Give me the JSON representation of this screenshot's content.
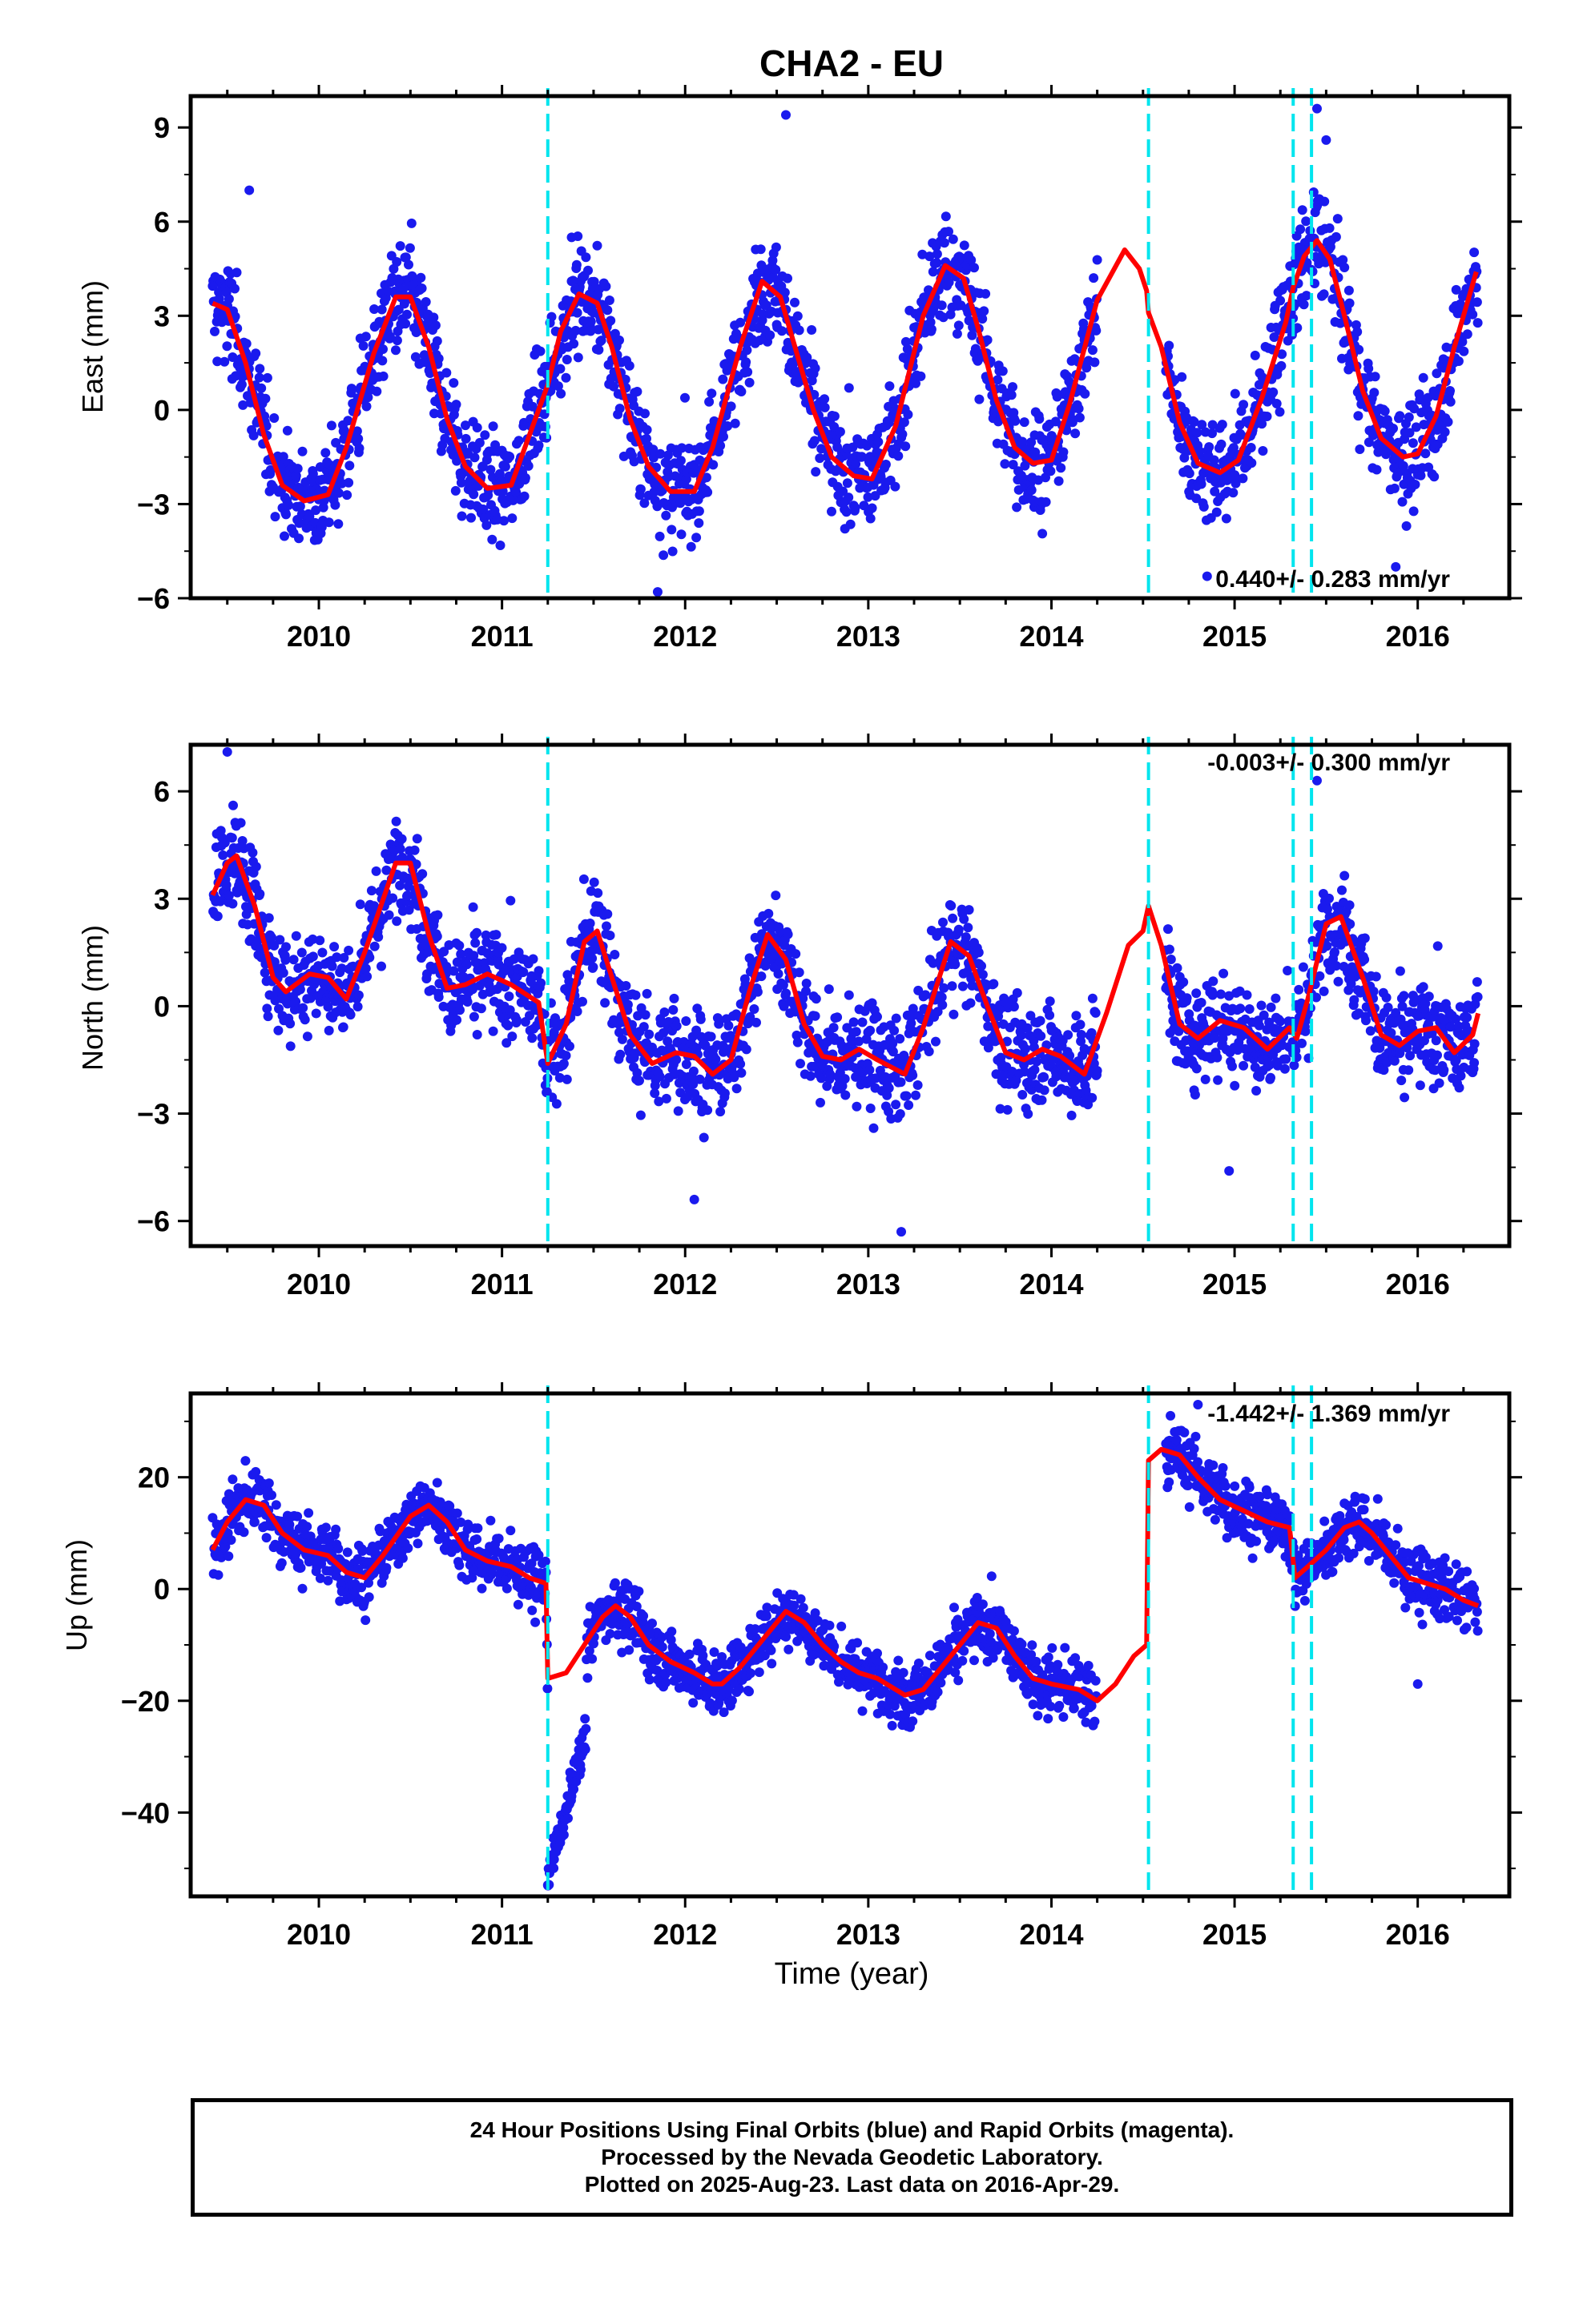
{
  "title": "CHA2 - EU",
  "xlabel": "Time (year)",
  "caption": [
    "24 Hour Positions Using Final Orbits (blue) and Rapid Orbits (magenta).",
    "Processed by the Nevada Geodetic Laboratory.",
    "Plotted on 2025-Aug-23. Last data on 2016-Apr-29."
  ],
  "colors": {
    "points": "#1a1aee",
    "model": "#ff0000",
    "events": "#00e5ee",
    "frame": "#000000"
  },
  "chart_data": [
    {
      "type": "scatter",
      "panel": "east",
      "ylabel": "East (mm)",
      "xlim": [
        2009.3,
        2016.5
      ],
      "ylim": [
        -6,
        10
      ],
      "yticks": [
        -6,
        -3,
        0,
        3,
        6,
        9
      ],
      "xticks": [
        2010,
        2011,
        2012,
        2013,
        2014,
        2015,
        2016
      ],
      "rate_label": "0.440+/- 0.283 mm/yr",
      "events": [
        2011.25,
        2014.53,
        2015.32,
        2015.42
      ],
      "model": [
        [
          2009.42,
          3.4
        ],
        [
          2009.5,
          3.2
        ],
        [
          2009.6,
          1.5
        ],
        [
          2009.7,
          -0.8
        ],
        [
          2009.8,
          -2.4
        ],
        [
          2009.92,
          -2.9
        ],
        [
          2010.05,
          -2.7
        ],
        [
          2010.15,
          -1.2
        ],
        [
          2010.3,
          1.8
        ],
        [
          2010.42,
          3.6
        ],
        [
          2010.5,
          3.6
        ],
        [
          2010.6,
          2.0
        ],
        [
          2010.7,
          -0.3
        ],
        [
          2010.8,
          -1.8
        ],
        [
          2010.92,
          -2.5
        ],
        [
          2011.05,
          -2.4
        ],
        [
          2011.15,
          -0.8
        ],
        [
          2011.25,
          0.8
        ],
        [
          2011.32,
          2.5
        ],
        [
          2011.42,
          3.7
        ],
        [
          2011.52,
          3.4
        ],
        [
          2011.6,
          2.0
        ],
        [
          2011.7,
          -0.3
        ],
        [
          2011.8,
          -1.8
        ],
        [
          2011.92,
          -2.6
        ],
        [
          2012.05,
          -2.6
        ],
        [
          2012.15,
          -1.2
        ],
        [
          2012.3,
          2.0
        ],
        [
          2012.42,
          4.1
        ],
        [
          2012.52,
          3.6
        ],
        [
          2012.6,
          2.0
        ],
        [
          2012.7,
          0.0
        ],
        [
          2012.8,
          -1.5
        ],
        [
          2012.92,
          -2.1
        ],
        [
          2013.02,
          -2.2
        ],
        [
          2013.15,
          -0.5
        ],
        [
          2013.3,
          3.0
        ],
        [
          2013.42,
          4.6
        ],
        [
          2013.52,
          4.2
        ],
        [
          2013.6,
          2.6
        ],
        [
          2013.7,
          0.3
        ],
        [
          2013.8,
          -1.2
        ],
        [
          2013.9,
          -1.7
        ],
        [
          2014.0,
          -1.6
        ],
        [
          2014.1,
          0.2
        ],
        [
          2014.25,
          3.5
        ],
        [
          2014.4,
          5.1
        ],
        [
          2014.48,
          4.5
        ],
        [
          2014.52,
          3.8
        ],
        [
          2014.53,
          3.1
        ],
        [
          2014.6,
          2.0
        ],
        [
          2014.7,
          -0.4
        ],
        [
          2014.8,
          -1.7
        ],
        [
          2014.92,
          -2.0
        ],
        [
          2015.02,
          -1.6
        ],
        [
          2015.15,
          0.4
        ],
        [
          2015.28,
          2.8
        ],
        [
          2015.32,
          3.9
        ],
        [
          2015.38,
          4.9
        ],
        [
          2015.45,
          5.4
        ],
        [
          2015.52,
          4.8
        ],
        [
          2015.6,
          3.0
        ],
        [
          2015.7,
          0.6
        ],
        [
          2015.8,
          -0.9
        ],
        [
          2015.92,
          -1.5
        ],
        [
          2016.0,
          -1.4
        ],
        [
          2016.1,
          -0.2
        ],
        [
          2016.2,
          2.0
        ],
        [
          2016.32,
          4.4
        ]
      ],
      "outliers": [
        [
          2009.62,
          7.0
        ],
        [
          2011.85,
          -5.8
        ],
        [
          2012.55,
          9.4
        ],
        [
          2015.45,
          9.6
        ],
        [
          2015.5,
          8.6
        ],
        [
          2014.85,
          -5.3
        ],
        [
          2011.38,
          5.5
        ],
        [
          2015.88,
          -5.0
        ]
      ]
    },
    {
      "type": "scatter",
      "panel": "north",
      "ylabel": "North (mm)",
      "xlim": [
        2009.3,
        2016.5
      ],
      "ylim": [
        -6.7,
        7.3
      ],
      "yticks": [
        -6,
        -3,
        0,
        3,
        6
      ],
      "xticks": [
        2010,
        2011,
        2012,
        2013,
        2014,
        2015,
        2016
      ],
      "rate_label": "-0.003+/- 0.300 mm/yr",
      "events": [
        2011.25,
        2014.53,
        2015.32,
        2015.42
      ],
      "model": [
        [
          2009.42,
          3.1
        ],
        [
          2009.5,
          4.0
        ],
        [
          2009.55,
          4.2
        ],
        [
          2009.65,
          2.8
        ],
        [
          2009.75,
          0.8
        ],
        [
          2009.82,
          0.4
        ],
        [
          2009.95,
          0.9
        ],
        [
          2010.05,
          0.8
        ],
        [
          2010.15,
          0.2
        ],
        [
          2010.25,
          1.5
        ],
        [
          2010.42,
          4.0
        ],
        [
          2010.5,
          4.0
        ],
        [
          2010.6,
          2.0
        ],
        [
          2010.7,
          0.5
        ],
        [
          2010.8,
          0.6
        ],
        [
          2010.92,
          0.9
        ],
        [
          2011.05,
          0.6
        ],
        [
          2011.2,
          0.1
        ],
        [
          2011.25,
          -1.6
        ],
        [
          2011.35,
          -0.5
        ],
        [
          2011.45,
          1.8
        ],
        [
          2011.52,
          2.1
        ],
        [
          2011.6,
          0.8
        ],
        [
          2011.7,
          -0.8
        ],
        [
          2011.82,
          -1.6
        ],
        [
          2011.95,
          -1.3
        ],
        [
          2012.05,
          -1.4
        ],
        [
          2012.15,
          -1.9
        ],
        [
          2012.25,
          -1.5
        ],
        [
          2012.35,
          0.4
        ],
        [
          2012.45,
          2.0
        ],
        [
          2012.55,
          1.3
        ],
        [
          2012.65,
          -0.5
        ],
        [
          2012.75,
          -1.4
        ],
        [
          2012.85,
          -1.5
        ],
        [
          2012.95,
          -1.2
        ],
        [
          2013.05,
          -1.5
        ],
        [
          2013.2,
          -1.9
        ],
        [
          2013.3,
          -0.6
        ],
        [
          2013.45,
          1.8
        ],
        [
          2013.55,
          1.4
        ],
        [
          2013.65,
          0.0
        ],
        [
          2013.75,
          -1.3
        ],
        [
          2013.85,
          -1.5
        ],
        [
          2013.95,
          -1.2
        ],
        [
          2014.05,
          -1.4
        ],
        [
          2014.18,
          -1.9
        ],
        [
          2014.3,
          -0.2
        ],
        [
          2014.42,
          1.7
        ],
        [
          2014.5,
          2.1
        ],
        [
          2014.53,
          2.8
        ],
        [
          2014.6,
          1.7
        ],
        [
          2014.7,
          -0.5
        ],
        [
          2014.8,
          -0.9
        ],
        [
          2014.92,
          -0.4
        ],
        [
          2015.05,
          -0.6
        ],
        [
          2015.18,
          -1.2
        ],
        [
          2015.3,
          -0.6
        ],
        [
          2015.34,
          -0.9
        ],
        [
          2015.4,
          0.2
        ],
        [
          2015.5,
          2.3
        ],
        [
          2015.58,
          2.5
        ],
        [
          2015.7,
          0.8
        ],
        [
          2015.8,
          -0.8
        ],
        [
          2015.9,
          -1.1
        ],
        [
          2016.0,
          -0.7
        ],
        [
          2016.1,
          -0.6
        ],
        [
          2016.2,
          -1.3
        ],
        [
          2016.3,
          -0.8
        ],
        [
          2016.33,
          -0.2
        ]
      ],
      "outliers": [
        [
          2009.5,
          7.1
        ],
        [
          2013.18,
          -6.3
        ],
        [
          2015.45,
          6.3
        ],
        [
          2012.05,
          -5.4
        ],
        [
          2014.97,
          -4.6
        ]
      ]
    },
    {
      "type": "scatter",
      "panel": "up",
      "ylabel": "Up (mm)",
      "xlim": [
        2009.3,
        2016.5
      ],
      "ylim": [
        -55,
        35
      ],
      "yticks": [
        -40,
        -20,
        0,
        20
      ],
      "xticks": [
        2010,
        2011,
        2012,
        2013,
        2014,
        2015,
        2016
      ],
      "rate_label": "-1.442+/- 1.369 mm/yr",
      "events": [
        2011.25,
        2014.53,
        2015.32,
        2015.42
      ],
      "model": [
        [
          2009.42,
          7
        ],
        [
          2009.5,
          12
        ],
        [
          2009.6,
          16
        ],
        [
          2009.7,
          15
        ],
        [
          2009.8,
          10
        ],
        [
          2009.92,
          7
        ],
        [
          2010.05,
          6
        ],
        [
          2010.15,
          3
        ],
        [
          2010.25,
          2
        ],
        [
          2010.35,
          6
        ],
        [
          2010.5,
          13
        ],
        [
          2010.6,
          15
        ],
        [
          2010.7,
          12
        ],
        [
          2010.8,
          7
        ],
        [
          2010.92,
          5
        ],
        [
          2011.05,
          4
        ],
        [
          2011.15,
          2
        ],
        [
          2011.24,
          1
        ],
        [
          2011.25,
          -16
        ],
        [
          2011.35,
          -15
        ],
        [
          2011.45,
          -10
        ],
        [
          2011.55,
          -5
        ],
        [
          2011.62,
          -3
        ],
        [
          2011.7,
          -5
        ],
        [
          2011.8,
          -10
        ],
        [
          2011.92,
          -13
        ],
        [
          2012.05,
          -15
        ],
        [
          2012.15,
          -17
        ],
        [
          2012.2,
          -17
        ],
        [
          2012.3,
          -14
        ],
        [
          2012.45,
          -8
        ],
        [
          2012.55,
          -4
        ],
        [
          2012.65,
          -6
        ],
        [
          2012.75,
          -10
        ],
        [
          2012.85,
          -13
        ],
        [
          2012.95,
          -15
        ],
        [
          2013.05,
          -16
        ],
        [
          2013.2,
          -19
        ],
        [
          2013.3,
          -18
        ],
        [
          2013.45,
          -12
        ],
        [
          2013.6,
          -6
        ],
        [
          2013.7,
          -7
        ],
        [
          2013.8,
          -12
        ],
        [
          2013.9,
          -16
        ],
        [
          2014.0,
          -17
        ],
        [
          2014.15,
          -18
        ],
        [
          2014.25,
          -20
        ],
        [
          2014.35,
          -17
        ],
        [
          2014.45,
          -12
        ],
        [
          2014.52,
          -10
        ],
        [
          2014.53,
          23
        ],
        [
          2014.6,
          25
        ],
        [
          2014.7,
          24
        ],
        [
          2014.8,
          20
        ],
        [
          2014.92,
          16
        ],
        [
          2015.05,
          14
        ],
        [
          2015.18,
          12
        ],
        [
          2015.3,
          11
        ],
        [
          2015.33,
          2
        ],
        [
          2015.4,
          4
        ],
        [
          2015.5,
          7
        ],
        [
          2015.6,
          11
        ],
        [
          2015.68,
          12
        ],
        [
          2015.75,
          10
        ],
        [
          2015.85,
          6
        ],
        [
          2015.95,
          2
        ],
        [
          2016.05,
          1
        ],
        [
          2016.15,
          0
        ],
        [
          2016.25,
          -2
        ],
        [
          2016.33,
          -3
        ]
      ],
      "outliers": [
        [
          2011.25,
          -53
        ],
        [
          2014.65,
          31
        ],
        [
          2014.8,
          33
        ],
        [
          2016.0,
          -17
        ]
      ]
    }
  ]
}
